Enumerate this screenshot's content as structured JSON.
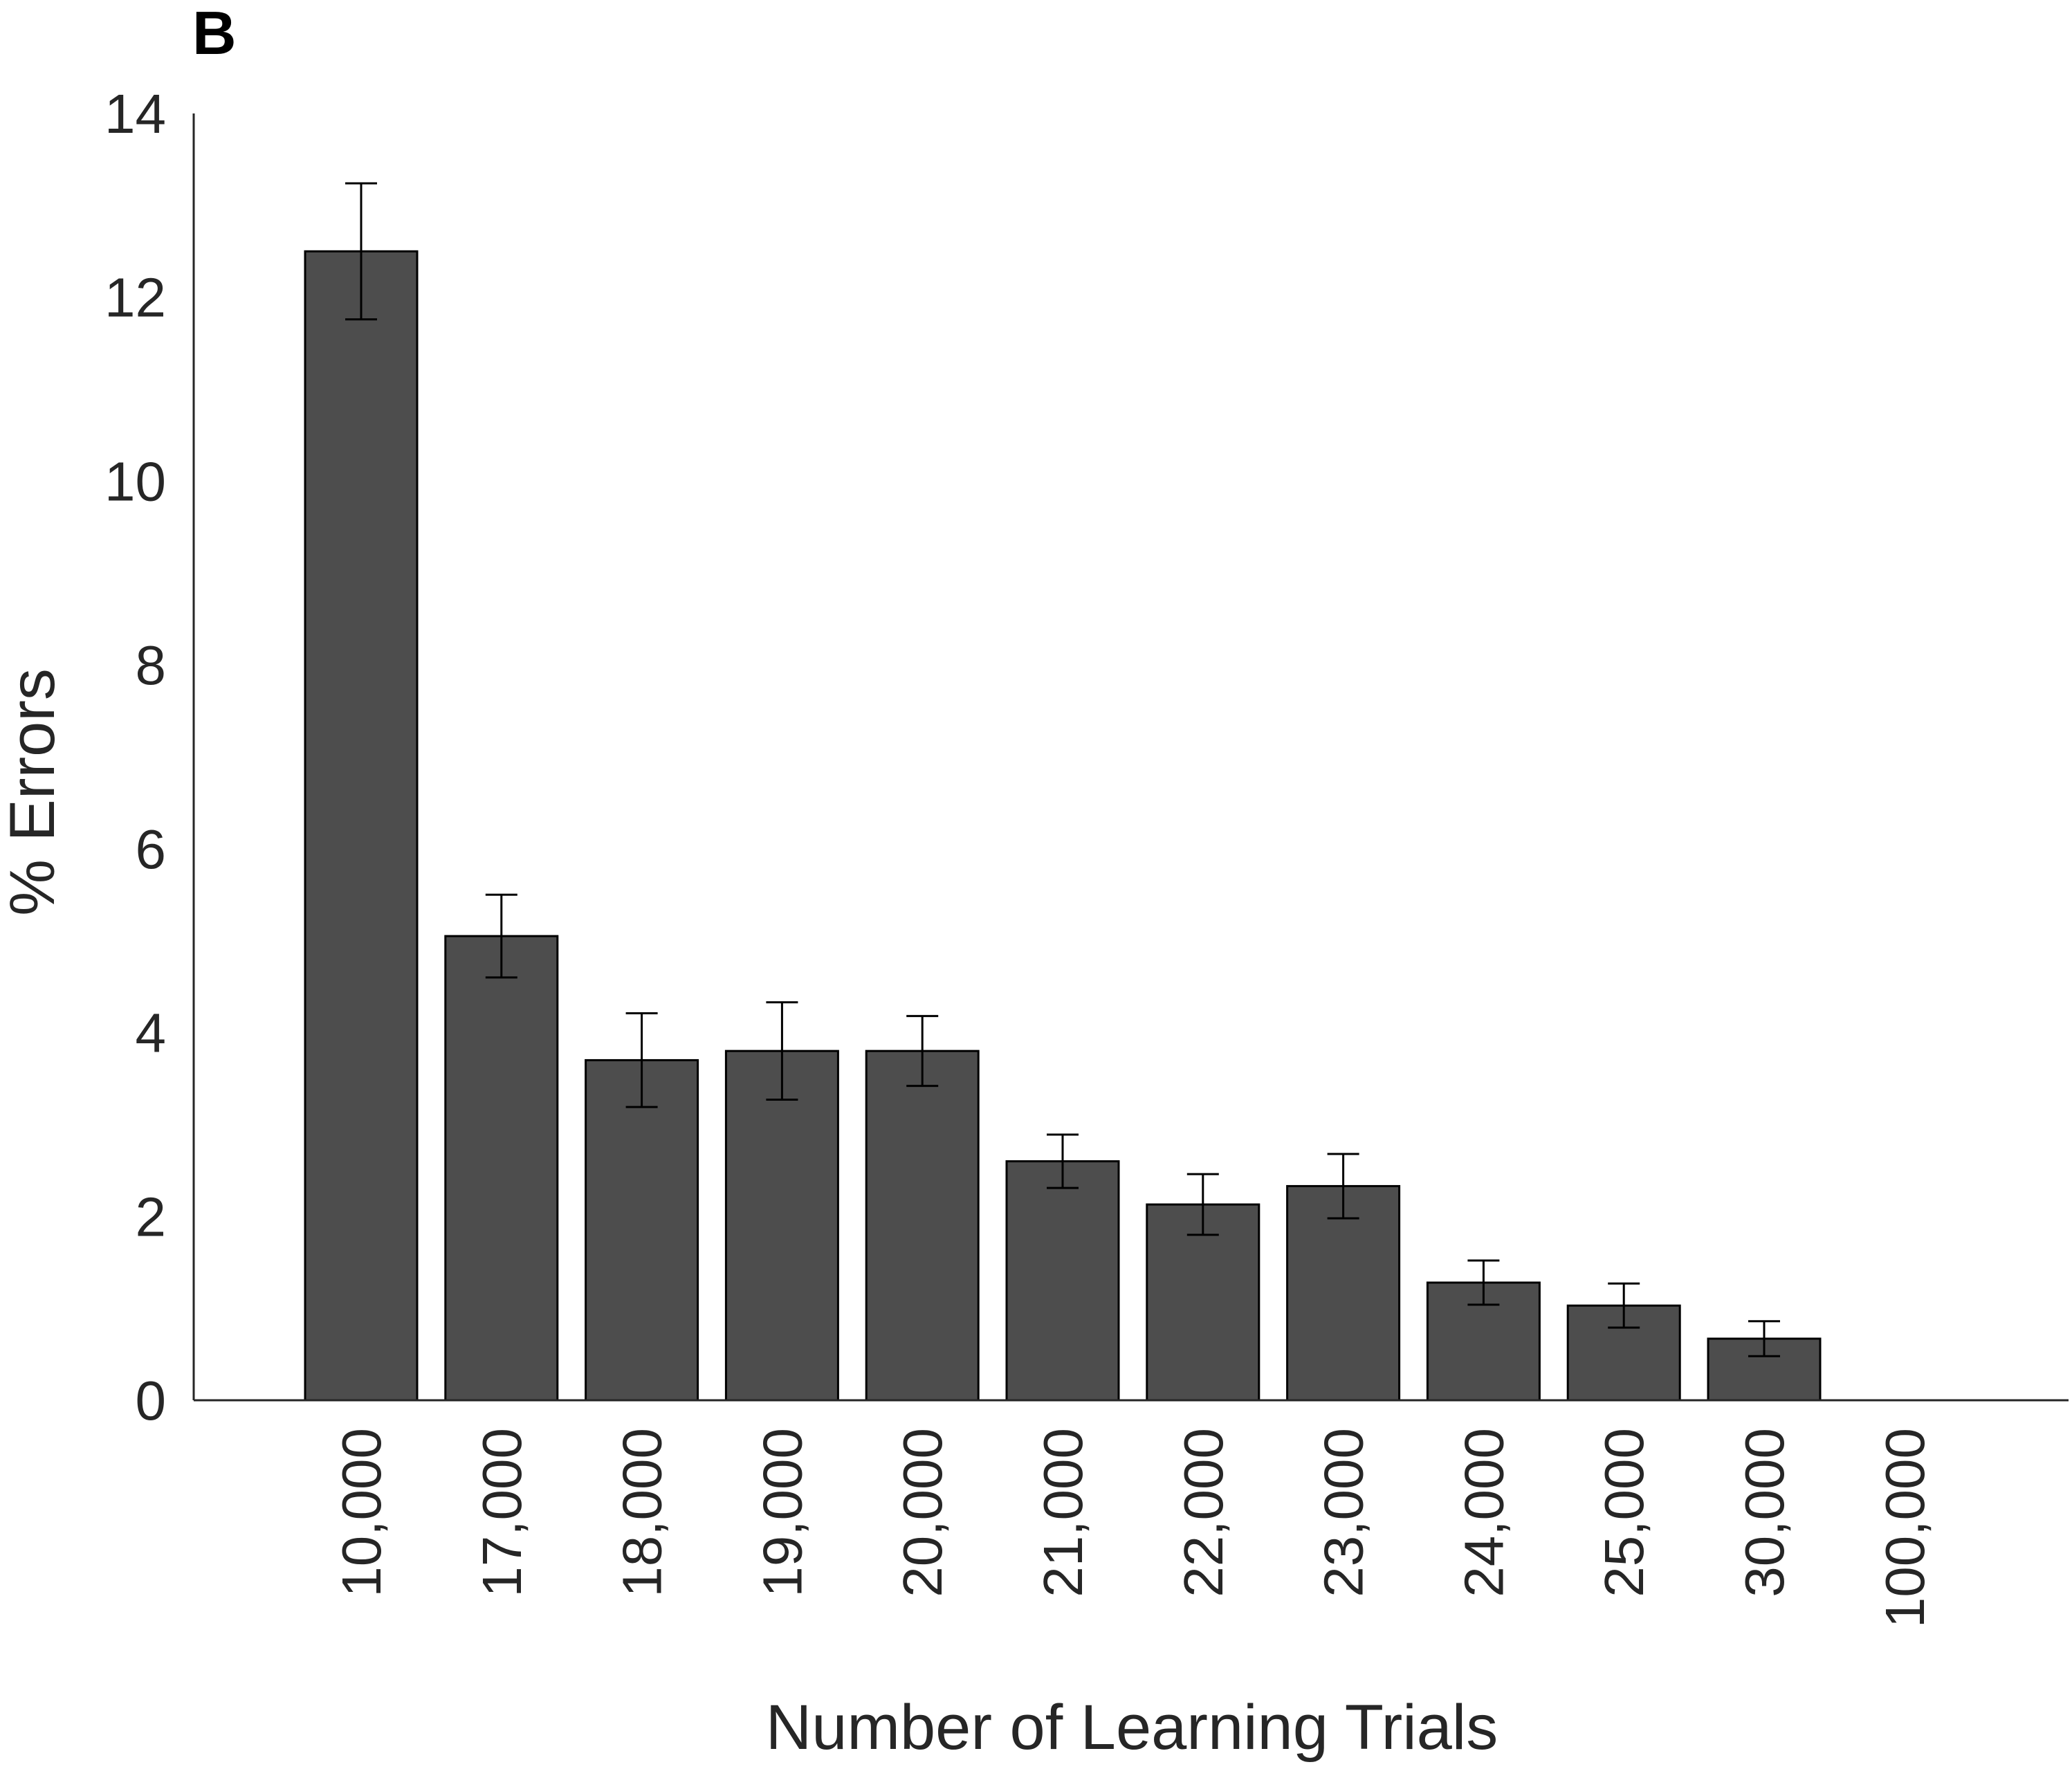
{
  "panel_label": "B",
  "chart_data": {
    "type": "bar",
    "title": "",
    "xlabel": "Number of Learning Trials",
    "ylabel": "% Errors",
    "categories": [
      "10,000",
      "17,000",
      "18,000",
      "19,000",
      "20,000",
      "21,000",
      "22,000",
      "23,000",
      "24,000",
      "25,000",
      "30,000",
      "100,000"
    ],
    "values": [
      12.5,
      5.05,
      3.7,
      3.8,
      3.8,
      2.6,
      2.13,
      2.33,
      1.28,
      1.03,
      0.67,
      0.0
    ],
    "errors": [
      0.74,
      0.45,
      0.51,
      0.53,
      0.38,
      0.29,
      0.33,
      0.35,
      0.24,
      0.24,
      0.19,
      0.0
    ],
    "yticks": [
      "0",
      "2",
      "4",
      "6",
      "8",
      "10",
      "12",
      "14"
    ],
    "ylim": [
      0,
      14.4
    ],
    "grid": false,
    "legend": "none",
    "colors": {
      "bar": "#4d4d4d",
      "edge": "#000000",
      "axis": "#262626",
      "errorbar": "#000000"
    }
  }
}
